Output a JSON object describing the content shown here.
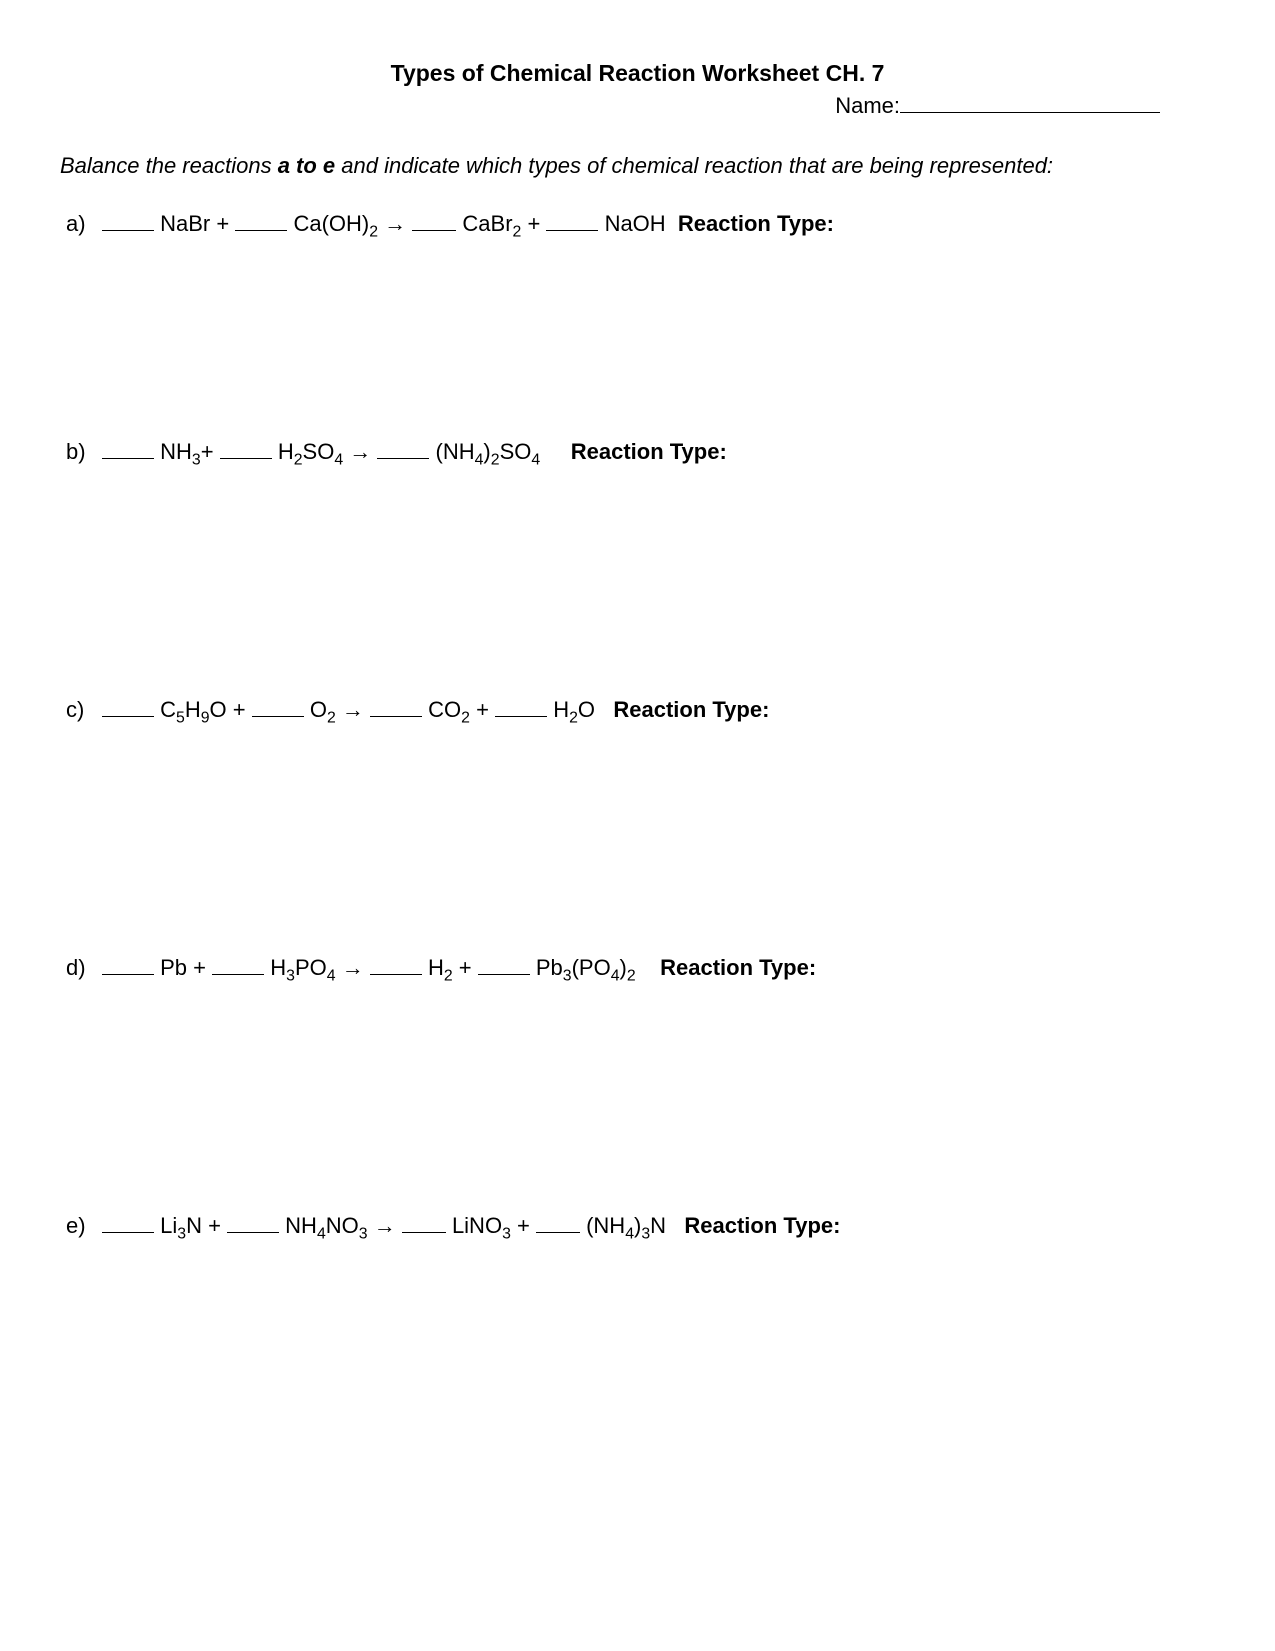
{
  "title": "Types of Chemical Reaction Worksheet CH. 7",
  "name_label": "Name:",
  "instructions_pre": "Balance the reactions ",
  "instructions_bold": "a to e",
  "instructions_post": "  and indicate which types of chemical reaction that are being represented:",
  "reaction_type_label": "Reaction Type:",
  "arrow": "→",
  "questions": {
    "a": {
      "label": "a)",
      "r1": "NaBr",
      "r2_pre": "Ca(OH)",
      "r2_sub": "2",
      "p1_pre": "CaBr",
      "p1_sub": "2",
      "p2": "NaOH"
    },
    "b": {
      "label": "b)",
      "r1_pre": "NH",
      "r1_sub": "3",
      "r2_a": "H",
      "r2_a_sub": "2",
      "r2_b": "SO",
      "r2_b_sub": "4",
      "p1_a": "(NH",
      "p1_a_sub": "4",
      "p1_b": ")",
      "p1_b_sub": "2",
      "p1_c": "SO",
      "p1_c_sub": "4"
    },
    "c": {
      "label": "c)",
      "r1_a": "C",
      "r1_a_sub": "5",
      "r1_b": "H",
      "r1_b_sub": "9",
      "r1_c": "O",
      "r2_pre": "O",
      "r2_sub": "2",
      "p1_pre": "CO",
      "p1_sub": "2",
      "p2_a": "H",
      "p2_a_sub": "2",
      "p2_b": "O"
    },
    "d": {
      "label": "d)",
      "r1": "Pb",
      "r2_a": "H",
      "r2_a_sub": "3",
      "r2_b": "PO",
      "r2_b_sub": "4",
      "p1_pre": "H",
      "p1_sub": "2",
      "p2_a": "Pb",
      "p2_a_sub": "3",
      "p2_b": "(PO",
      "p2_b_sub": "4",
      "p2_c": ")",
      "p2_c_sub": "2"
    },
    "e": {
      "label": "e)",
      "r1_pre": "Li",
      "r1_sub": "3",
      "r1_post": "N",
      "r2_a": "NH",
      "r2_a_sub": "4",
      "r2_b": "NO",
      "r2_b_sub": "3",
      "p1_pre": "LiNO",
      "p1_sub": "3",
      "p2_a": "(NH",
      "p2_a_sub": "4",
      "p2_b": ")",
      "p2_b_sub": "3",
      "p2_c": "N"
    }
  }
}
